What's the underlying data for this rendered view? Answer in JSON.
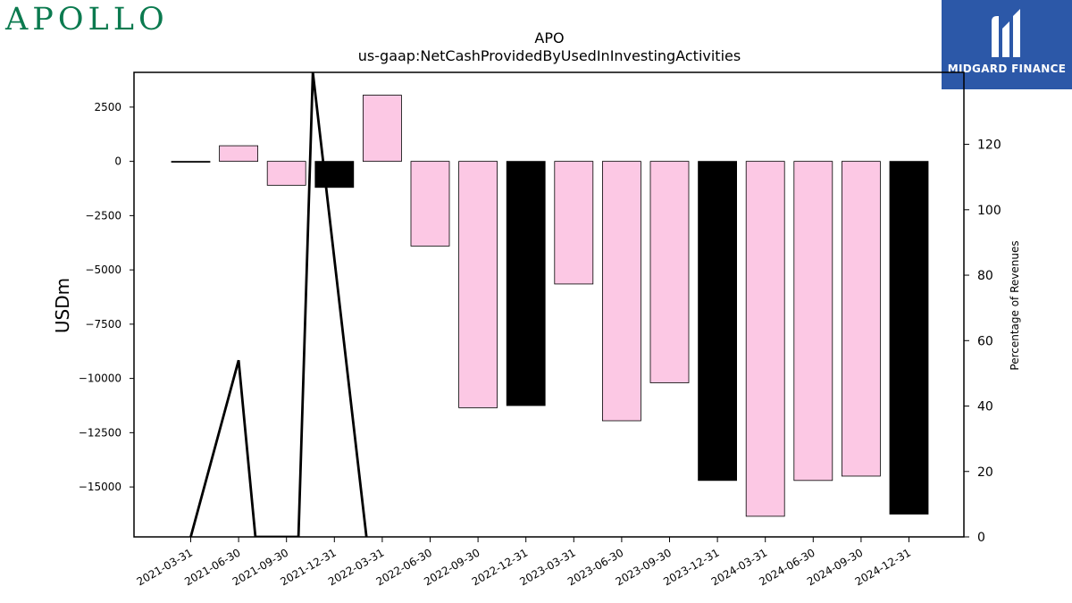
{
  "branding": {
    "left_logo": "APOLLO",
    "right_logo": "MIDGARD FINANCE",
    "right_logo_color": "#2c58a8"
  },
  "chart_data": {
    "type": "bar",
    "title": "APO",
    "subtitle": "us-gaap:NetCashProvidedByUsedInInvestingActivities",
    "ylabel": "USDm",
    "y2label": "Percentage of Revenues",
    "categories": [
      "2021-03-31",
      "2021-06-30",
      "2021-09-30",
      "2021-12-31",
      "2022-03-31",
      "2022-06-30",
      "2022-09-30",
      "2022-12-31",
      "2023-03-31",
      "2023-06-30",
      "2023-09-30",
      "2023-12-31",
      "2024-03-31",
      "2024-06-30",
      "2024-09-30",
      "2024-12-31"
    ],
    "values": [
      -20,
      720,
      -1100,
      -1200,
      3050,
      -3900,
      -11350,
      -11250,
      -5650,
      -11950,
      -10200,
      -14700,
      -16350,
      -14700,
      -14500,
      -16250
    ],
    "bar_colors": [
      "#000000",
      "#fcc8e4",
      "#fcc8e4",
      "#000000",
      "#fcc8e4",
      "#fcc8e4",
      "#fcc8e4",
      "#000000",
      "#fcc8e4",
      "#fcc8e4",
      "#fcc8e4",
      "#000000",
      "#fcc8e4",
      "#fcc8e4",
      "#fcc8e4",
      "#000000"
    ],
    "ylim": [
      -17300,
      4100
    ],
    "yticks": [
      2500,
      0,
      -2500,
      -5000,
      -7500,
      -10000,
      -12500,
      -15000
    ],
    "ytick_labels": [
      "2500",
      "0",
      "−2500",
      "−5000",
      "−7500",
      "−10000",
      "−12500",
      "−15000"
    ],
    "y2lim": [
      0,
      142
    ],
    "y2ticks": [
      0,
      20,
      40,
      60,
      80,
      100,
      120
    ],
    "percent_line": {
      "color": "#000000",
      "x": [
        0,
        1,
        1.35,
        2.25,
        2.55,
        3.67
      ],
      "y": [
        0,
        54,
        0,
        0,
        142,
        0
      ]
    }
  }
}
